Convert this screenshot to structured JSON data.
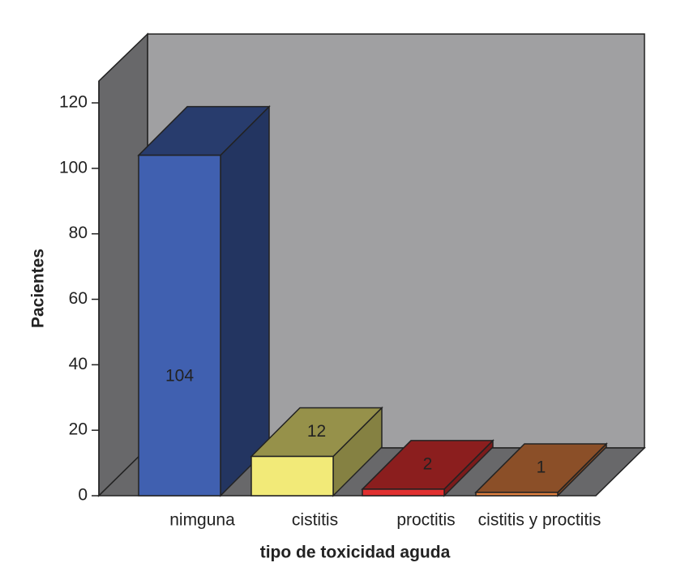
{
  "chart_data": {
    "type": "bar3d",
    "x_label": "tipo de toxicidad aguda",
    "y_label": "Pacientes",
    "categories": [
      "nimguna",
      "cistitis",
      "proctitis",
      "cistitis y proctitis"
    ],
    "values": [
      104,
      12,
      2,
      1
    ],
    "colors": [
      "#4060b0",
      "#f2ea78",
      "#e03030",
      "#e08040"
    ],
    "ylim": [
      0,
      120
    ],
    "yticks": [
      0,
      20,
      40,
      60,
      80,
      100,
      120
    ]
  }
}
